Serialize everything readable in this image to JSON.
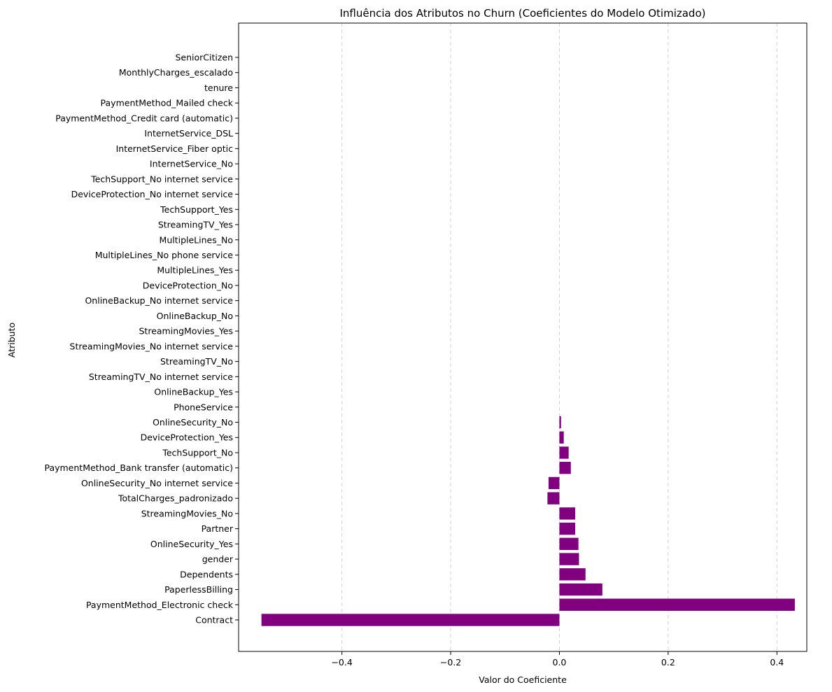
{
  "chart_data": {
    "type": "bar",
    "orientation": "horizontal",
    "title": "Influência dos Atributos no Churn (Coeficientes do Modelo Otimizado)",
    "xlabel": "Valor do Coeficiente",
    "ylabel": "Atributo",
    "xlim": [
      -0.59,
      0.455
    ],
    "xticks": [
      -0.4,
      -0.2,
      0.0,
      0.2,
      0.4
    ],
    "xtick_labels": [
      "−0.4",
      "−0.2",
      "0.0",
      "0.2",
      "0.4"
    ],
    "grid": "x-dashed",
    "bar_color": "#800080",
    "categories": [
      "Contract",
      "PaymentMethod_Electronic check",
      "PaperlessBilling",
      "Dependents",
      "gender",
      "OnlineSecurity_Yes",
      "Partner",
      "StreamingMovies_No",
      "TotalCharges_padronizado",
      "OnlineSecurity_No internet service",
      "PaymentMethod_Bank transfer (automatic)",
      "TechSupport_No",
      "DeviceProtection_Yes",
      "OnlineSecurity_No",
      "PhoneService",
      "OnlineBackup_Yes",
      "StreamingTV_No internet service",
      "StreamingTV_No",
      "StreamingMovies_No internet service",
      "StreamingMovies_Yes",
      "OnlineBackup_No",
      "OnlineBackup_No internet service",
      "DeviceProtection_No",
      "MultipleLines_Yes",
      "MultipleLines_No phone service",
      "MultipleLines_No",
      "StreamingTV_Yes",
      "TechSupport_Yes",
      "DeviceProtection_No internet service",
      "TechSupport_No internet service",
      "InternetService_No",
      "InternetService_Fiber optic",
      "InternetService_DSL",
      "PaymentMethod_Credit card (automatic)",
      "PaymentMethod_Mailed check",
      "tenure",
      "MonthlyCharges_escalado",
      "SeniorCitizen"
    ],
    "values": [
      -0.548,
      0.433,
      0.079,
      0.048,
      0.036,
      0.035,
      0.029,
      0.029,
      -0.022,
      -0.02,
      0.021,
      0.017,
      0.008,
      0.003,
      0,
      0,
      0,
      0,
      0,
      0,
      0,
      0,
      0,
      0,
      0,
      0,
      0,
      0,
      0,
      0,
      0,
      0,
      0,
      0,
      0,
      0,
      0,
      0
    ]
  }
}
